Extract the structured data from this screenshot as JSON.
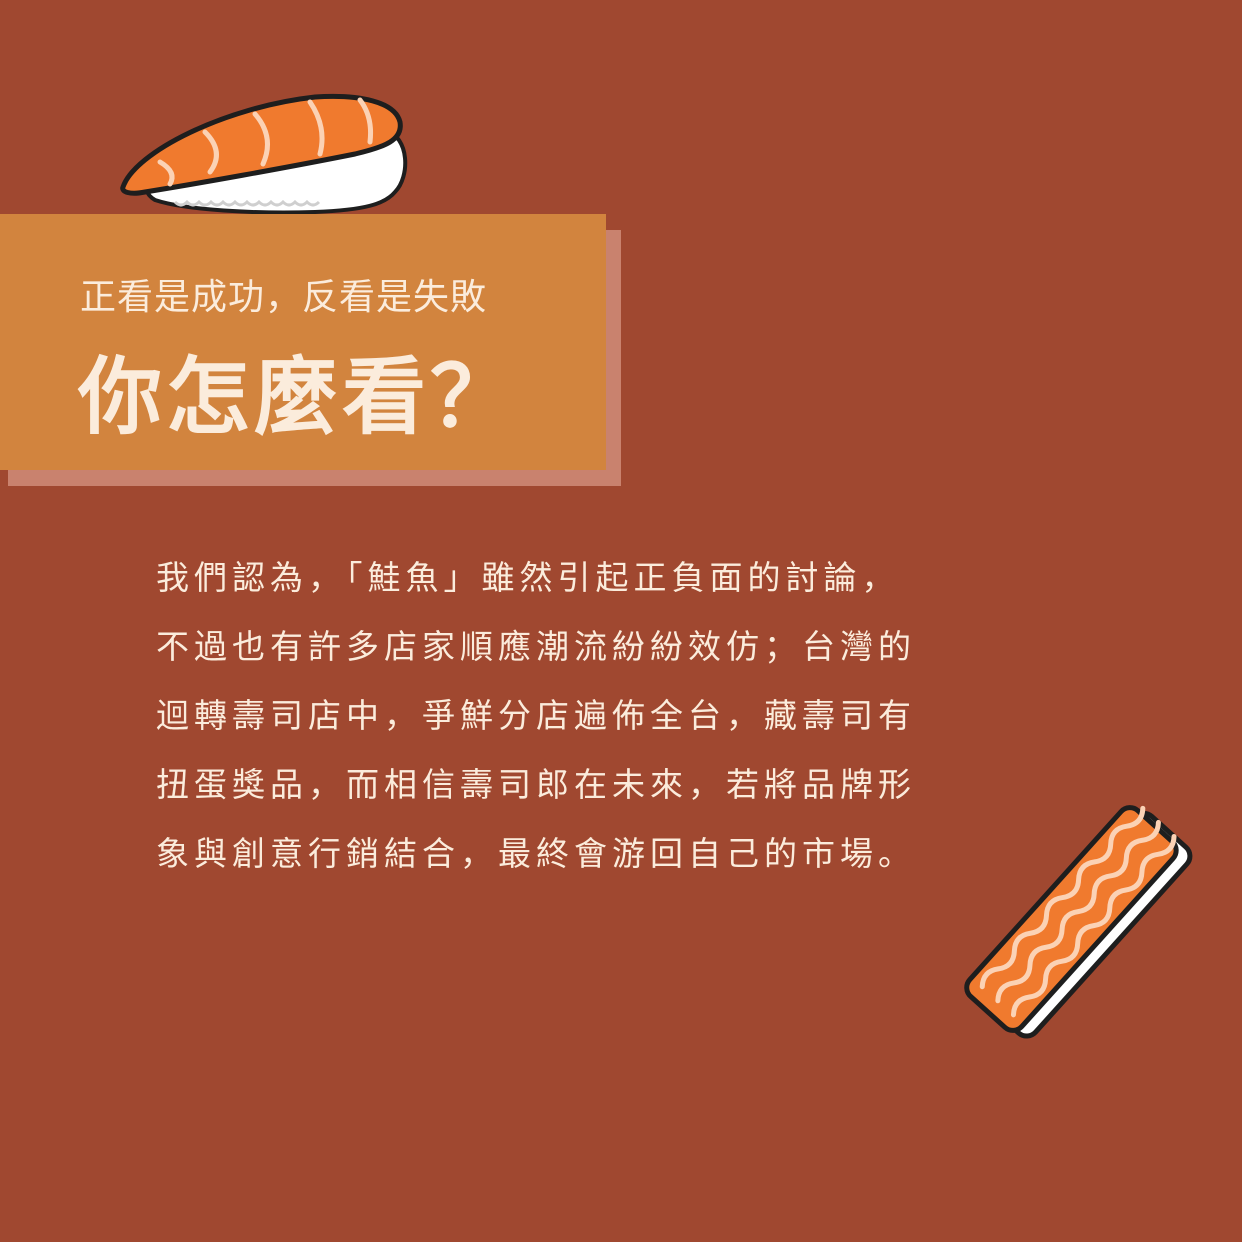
{
  "heading": {
    "subtitle": "正看是成功，反看是失敗",
    "title": "你怎麼看？"
  },
  "body": {
    "lines": [
      "我們認為，「鮭魚」雖然引起正負面的討論，",
      "不過也有許多店家順應潮流紛紛效仿；台灣的",
      "迴轉壽司店中，爭鮮分店遍佈全台，藏壽司有",
      "扭蛋獎品，而相信壽司郎在未來，若將品牌形",
      "象與創意行銷結合，最終會游回自己的市場。"
    ]
  },
  "colors": {
    "background": "#a04830",
    "title_box": "#d2843e",
    "title_box_shadow": "#c9826e",
    "text": "#fbecdc",
    "salmon": "#f07a2e"
  },
  "icons": [
    "salmon-nigiri-icon",
    "salmon-sashimi-icon"
  ]
}
